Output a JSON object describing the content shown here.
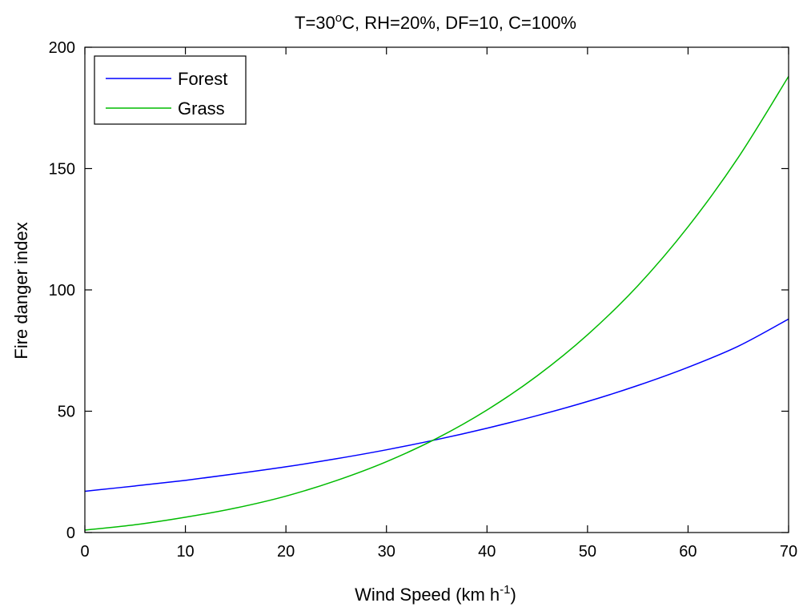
{
  "chart_data": {
    "type": "line",
    "title": {
      "prefix": "T=30",
      "superscript": "o",
      "suffix": "C, RH=20%, DF=10, C=100%"
    },
    "xlabel": {
      "prefix": "Wind Speed (km h",
      "superscript": "-1",
      "suffix": ")"
    },
    "ylabel": "Fire danger index",
    "xlim": [
      0,
      70
    ],
    "ylim": [
      0,
      200
    ],
    "xticks": [
      0,
      10,
      20,
      30,
      40,
      50,
      60,
      70
    ],
    "yticks": [
      0,
      50,
      100,
      150,
      200
    ],
    "grid": false,
    "legend_position": "top-left",
    "x": [
      0,
      5,
      10,
      15,
      20,
      25,
      30,
      35,
      40,
      45,
      50,
      55,
      60,
      65,
      70
    ],
    "series": [
      {
        "name": "Forest",
        "color": "#0000ff",
        "values": [
          17.0,
          19.2,
          21.5,
          24.2,
          27.1,
          30.4,
          34.1,
          38.3,
          43.0,
          48.2,
          54.0,
          60.6,
          68.1,
          76.8,
          88.0
        ]
      },
      {
        "name": "Grass",
        "color": "#00bb00",
        "values": [
          1.0,
          3.2,
          6.3,
          10.1,
          15.0,
          21.4,
          29.2,
          38.8,
          50.5,
          64.6,
          81.5,
          101.7,
          126.0,
          154.6,
          188.0
        ]
      }
    ]
  }
}
